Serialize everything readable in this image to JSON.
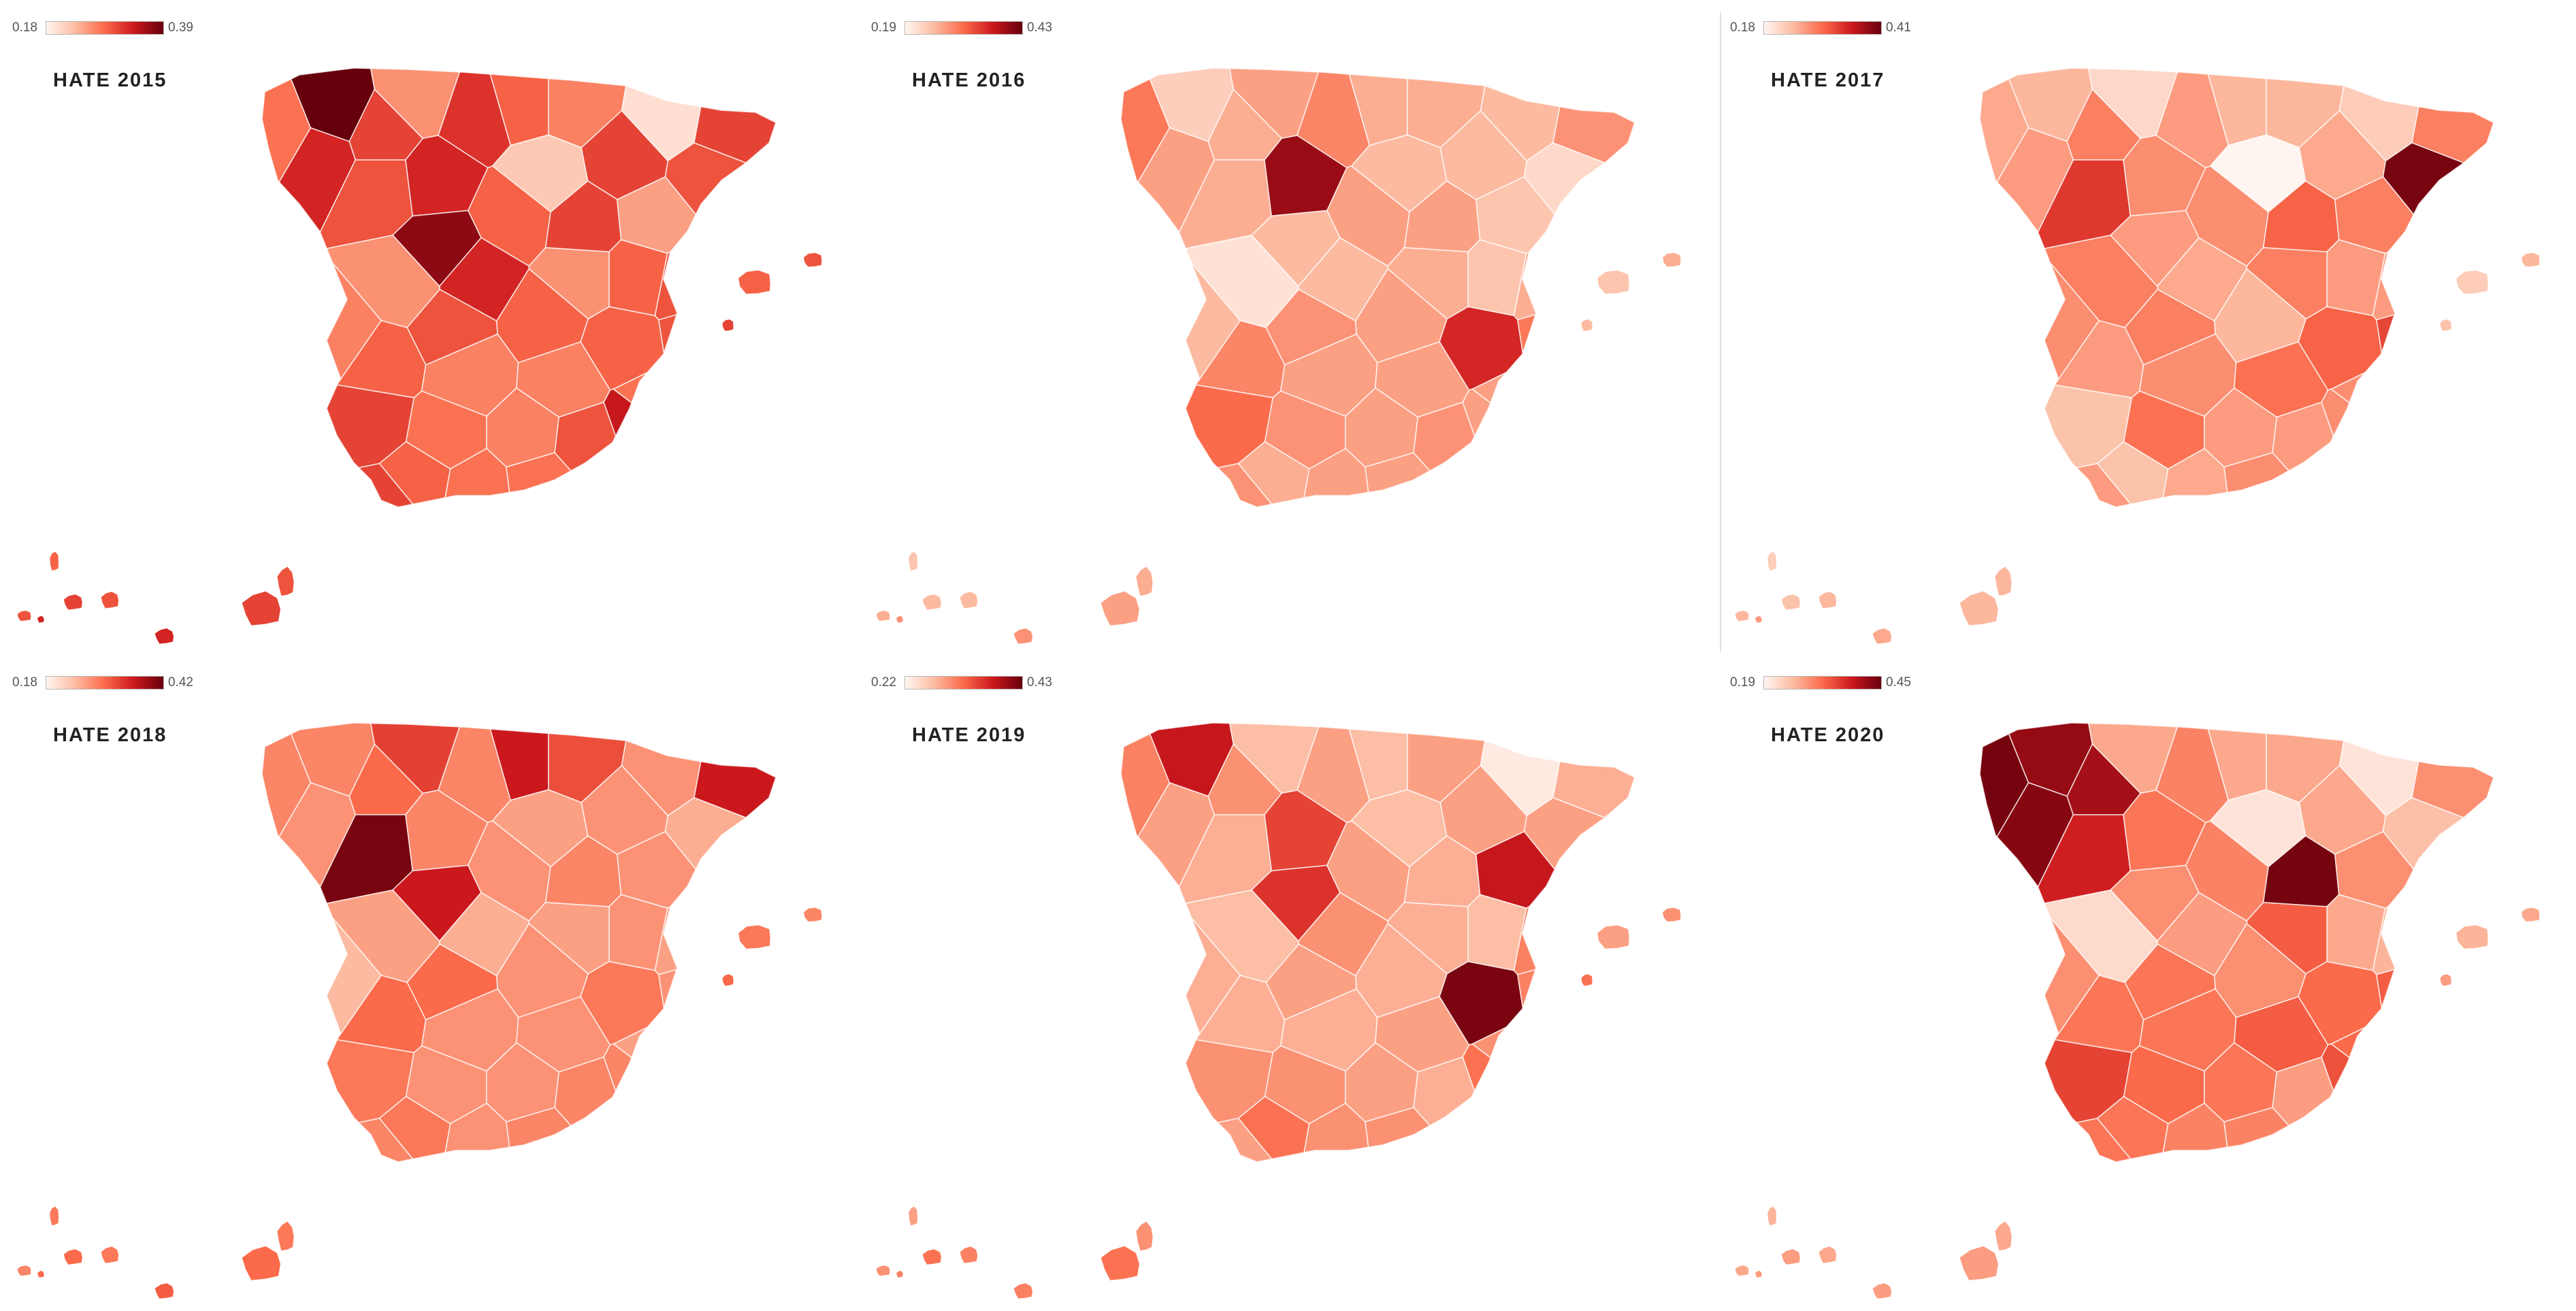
{
  "color_scale": [
    "#fff5f0",
    "#fcbba1",
    "#fb6a4a",
    "#cb181d",
    "#67000d"
  ],
  "panels": [
    {
      "title": "HATE 2015",
      "legend_min": "0.18",
      "legend_max": "0.39",
      "provinces": [
        0.28,
        0.39,
        0.33,
        0.31,
        0.26,
        0.32,
        0.29,
        0.27,
        0.2,
        0.31,
        0.3,
        0.33,
        0.22,
        0.31,
        0.3,
        0.37,
        0.29,
        0.31,
        0.25,
        0.3,
        0.29,
        0.26,
        0.33,
        0.26,
        0.27,
        0.3,
        0.29,
        0.29,
        0.3,
        0.34,
        0.29,
        0.27,
        0.27,
        0.28,
        0.31,
        0.28,
        0.27,
        0.3,
        0.27,
        0.29,
        0.28,
        0.28,
        0.31
      ],
      "islands": [
        0.29,
        0.3,
        0.31,
        0.3,
        0.33,
        0.31,
        0.3,
        0.33
      ]
    },
    {
      "title": "HATE 2016",
      "legend_min": "0.19",
      "legend_max": "0.43",
      "provinces": [
        0.3,
        0.23,
        0.27,
        0.26,
        0.27,
        0.29,
        0.26,
        0.26,
        0.25,
        0.28,
        0.26,
        0.4,
        0.25,
        0.25,
        0.22,
        0.25,
        0.27,
        0.27,
        0.24,
        0.26,
        0.24,
        0.26,
        0.25,
        0.21,
        0.25,
        0.28,
        0.27,
        0.36,
        0.3,
        0.27,
        0.29,
        0.27,
        0.27,
        0.27,
        0.31,
        0.28,
        0.27,
        0.28,
        0.29,
        0.26,
        0.27,
        0.27,
        0.28
      ],
      "islands": [
        0.24,
        0.26,
        0.25,
        0.25,
        0.28,
        0.27,
        0.26,
        0.28
      ]
    },
    {
      "title": "HATE 2017",
      "legend_min": "0.18",
      "legend_max": "0.41",
      "provinces": [
        0.25,
        0.24,
        0.26,
        0.28,
        0.21,
        0.26,
        0.24,
        0.24,
        0.22,
        0.28,
        0.33,
        0.27,
        0.18,
        0.25,
        0.4,
        0.26,
        0.27,
        0.3,
        0.28,
        0.26,
        0.26,
        0.28,
        0.25,
        0.28,
        0.27,
        0.28,
        0.24,
        0.3,
        0.32,
        0.27,
        0.26,
        0.27,
        0.29,
        0.27,
        0.23,
        0.29,
        0.26,
        0.26,
        0.27,
        0.23,
        0.25,
        0.27,
        0.26
      ],
      "islands": [
        0.22,
        0.24,
        0.23,
        0.24,
        0.25,
        0.24,
        0.24,
        0.26
      ]
    },
    {
      "title": "HATE 2018",
      "legend_min": "0.18",
      "legend_max": "0.42",
      "provinces": [
        0.28,
        0.28,
        0.27,
        0.3,
        0.33,
        0.28,
        0.36,
        0.32,
        0.27,
        0.36,
        0.41,
        0.28,
        0.26,
        0.27,
        0.25,
        0.36,
        0.27,
        0.28,
        0.27,
        0.26,
        0.27,
        0.26,
        0.25,
        0.26,
        0.24,
        0.3,
        0.27,
        0.29,
        0.27,
        0.28,
        0.3,
        0.27,
        0.27,
        0.26,
        0.29,
        0.27,
        0.27,
        0.28,
        0.26,
        0.29,
        0.27,
        0.28,
        0.28
      ],
      "islands": [
        0.29,
        0.28,
        0.3,
        0.29,
        0.31,
        0.3,
        0.29,
        0.3
      ]
    },
    {
      "title": "HATE 2019",
      "legend_min": "0.22",
      "legend_max": "0.43",
      "provinces": [
        0.31,
        0.38,
        0.29,
        0.3,
        0.27,
        0.29,
        0.27,
        0.29,
        0.23,
        0.28,
        0.28,
        0.35,
        0.27,
        0.29,
        0.29,
        0.36,
        0.29,
        0.28,
        0.38,
        0.31,
        0.27,
        0.28,
        0.3,
        0.27,
        0.28,
        0.29,
        0.28,
        0.42,
        0.31,
        0.32,
        0.28,
        0.28,
        0.29,
        0.3,
        0.3,
        0.3,
        0.29,
        0.28,
        0.35,
        0.32,
        0.3,
        0.3,
        0.29
      ],
      "islands": [
        0.29,
        0.3,
        0.32,
        0.31,
        0.31,
        0.32,
        0.3,
        0.31
      ]
    },
    {
      "title": "HATE 2020",
      "legend_min": "0.19",
      "legend_max": "0.45",
      "provinces": [
        0.44,
        0.42,
        0.43,
        0.41,
        0.27,
        0.3,
        0.27,
        0.27,
        0.21,
        0.29,
        0.38,
        0.31,
        0.21,
        0.27,
        0.25,
        0.29,
        0.3,
        0.44,
        0.29,
        0.26,
        0.27,
        0.33,
        0.28,
        0.22,
        0.29,
        0.31,
        0.29,
        0.32,
        0.33,
        0.34,
        0.31,
        0.31,
        0.33,
        0.32,
        0.35,
        0.32,
        0.31,
        0.28,
        0.3,
        0.31,
        0.3,
        0.3,
        0.31
      ],
      "islands": [
        0.26,
        0.27,
        0.28,
        0.27,
        0.28,
        0.28,
        0.27,
        0.28
      ]
    }
  ]
}
